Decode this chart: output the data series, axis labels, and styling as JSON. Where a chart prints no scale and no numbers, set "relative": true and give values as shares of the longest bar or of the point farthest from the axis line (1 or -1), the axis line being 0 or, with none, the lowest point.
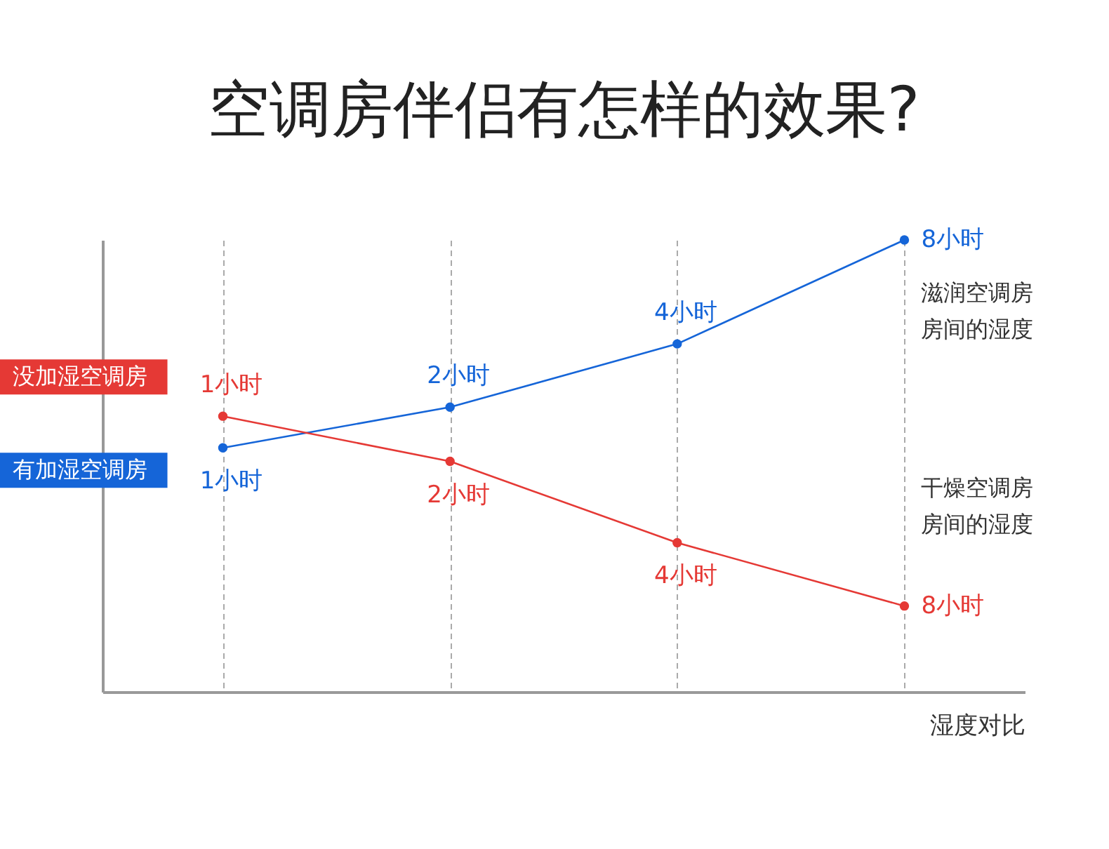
{
  "chart_data": {
    "type": "line",
    "title": "空调房伴侣有怎样的效果?",
    "xlabel": "湿度对比",
    "categories": [
      null,
      null,
      null,
      null
    ],
    "relative": true,
    "grid": "x",
    "marker": "circle",
    "annotations": [
      "1小时",
      "2小时",
      "4小时",
      "8小时",
      "1小时",
      "2小时",
      "4小时",
      "8小时",
      "滋润空调房房间的湿度",
      "干燥空调房房间的湿度"
    ],
    "series": [
      {
        "name": "有加湿空调房",
        "color": "#1565d8",
        "values": [
          0.54,
          0.63,
          0.77,
          1
        ]
      },
      {
        "name": "没加湿空调房",
        "color": "#e53935",
        "values": [
          0.61,
          0.51,
          0.33,
          0.19
        ]
      }
    ]
  }
}
